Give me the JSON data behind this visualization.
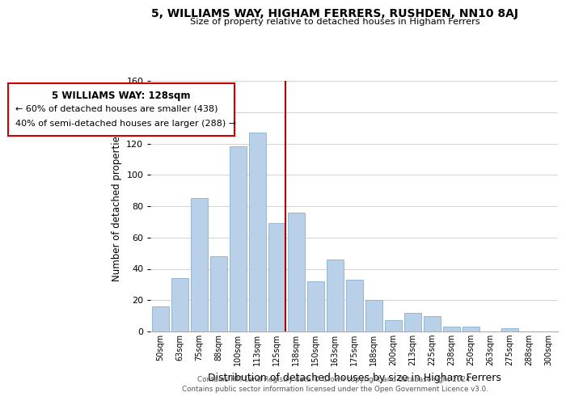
{
  "title": "5, WILLIAMS WAY, HIGHAM FERRERS, RUSHDEN, NN10 8AJ",
  "subtitle": "Size of property relative to detached houses in Higham Ferrers",
  "xlabel": "Distribution of detached houses by size in Higham Ferrers",
  "ylabel": "Number of detached properties",
  "categories": [
    "50sqm",
    "63sqm",
    "75sqm",
    "88sqm",
    "100sqm",
    "113sqm",
    "125sqm",
    "138sqm",
    "150sqm",
    "163sqm",
    "175sqm",
    "188sqm",
    "200sqm",
    "213sqm",
    "225sqm",
    "238sqm",
    "250sqm",
    "263sqm",
    "275sqm",
    "288sqm",
    "300sqm"
  ],
  "values": [
    16,
    34,
    85,
    48,
    118,
    127,
    69,
    76,
    32,
    46,
    33,
    20,
    7,
    12,
    10,
    3,
    3,
    0,
    2,
    0,
    0
  ],
  "bar_color": "#b8d0e8",
  "bar_edge_color": "#8ab0cc",
  "vline_x_index": 6,
  "vline_color": "#aa0000",
  "ylim": [
    0,
    160
  ],
  "yticks": [
    0,
    20,
    40,
    60,
    80,
    100,
    120,
    140,
    160
  ],
  "annotation_title": "5 WILLIAMS WAY: 128sqm",
  "annotation_line1": "← 60% of detached houses are smaller (438)",
  "annotation_line2": "40% of semi-detached houses are larger (288) →",
  "annotation_box_color": "#ffffff",
  "annotation_box_edge": "#cc0000",
  "footer1": "Contains HM Land Registry data © Crown copyright and database right 2024.",
  "footer2": "Contains public sector information licensed under the Open Government Licence v3.0.",
  "background_color": "#ffffff",
  "grid_color": "#cccccc"
}
